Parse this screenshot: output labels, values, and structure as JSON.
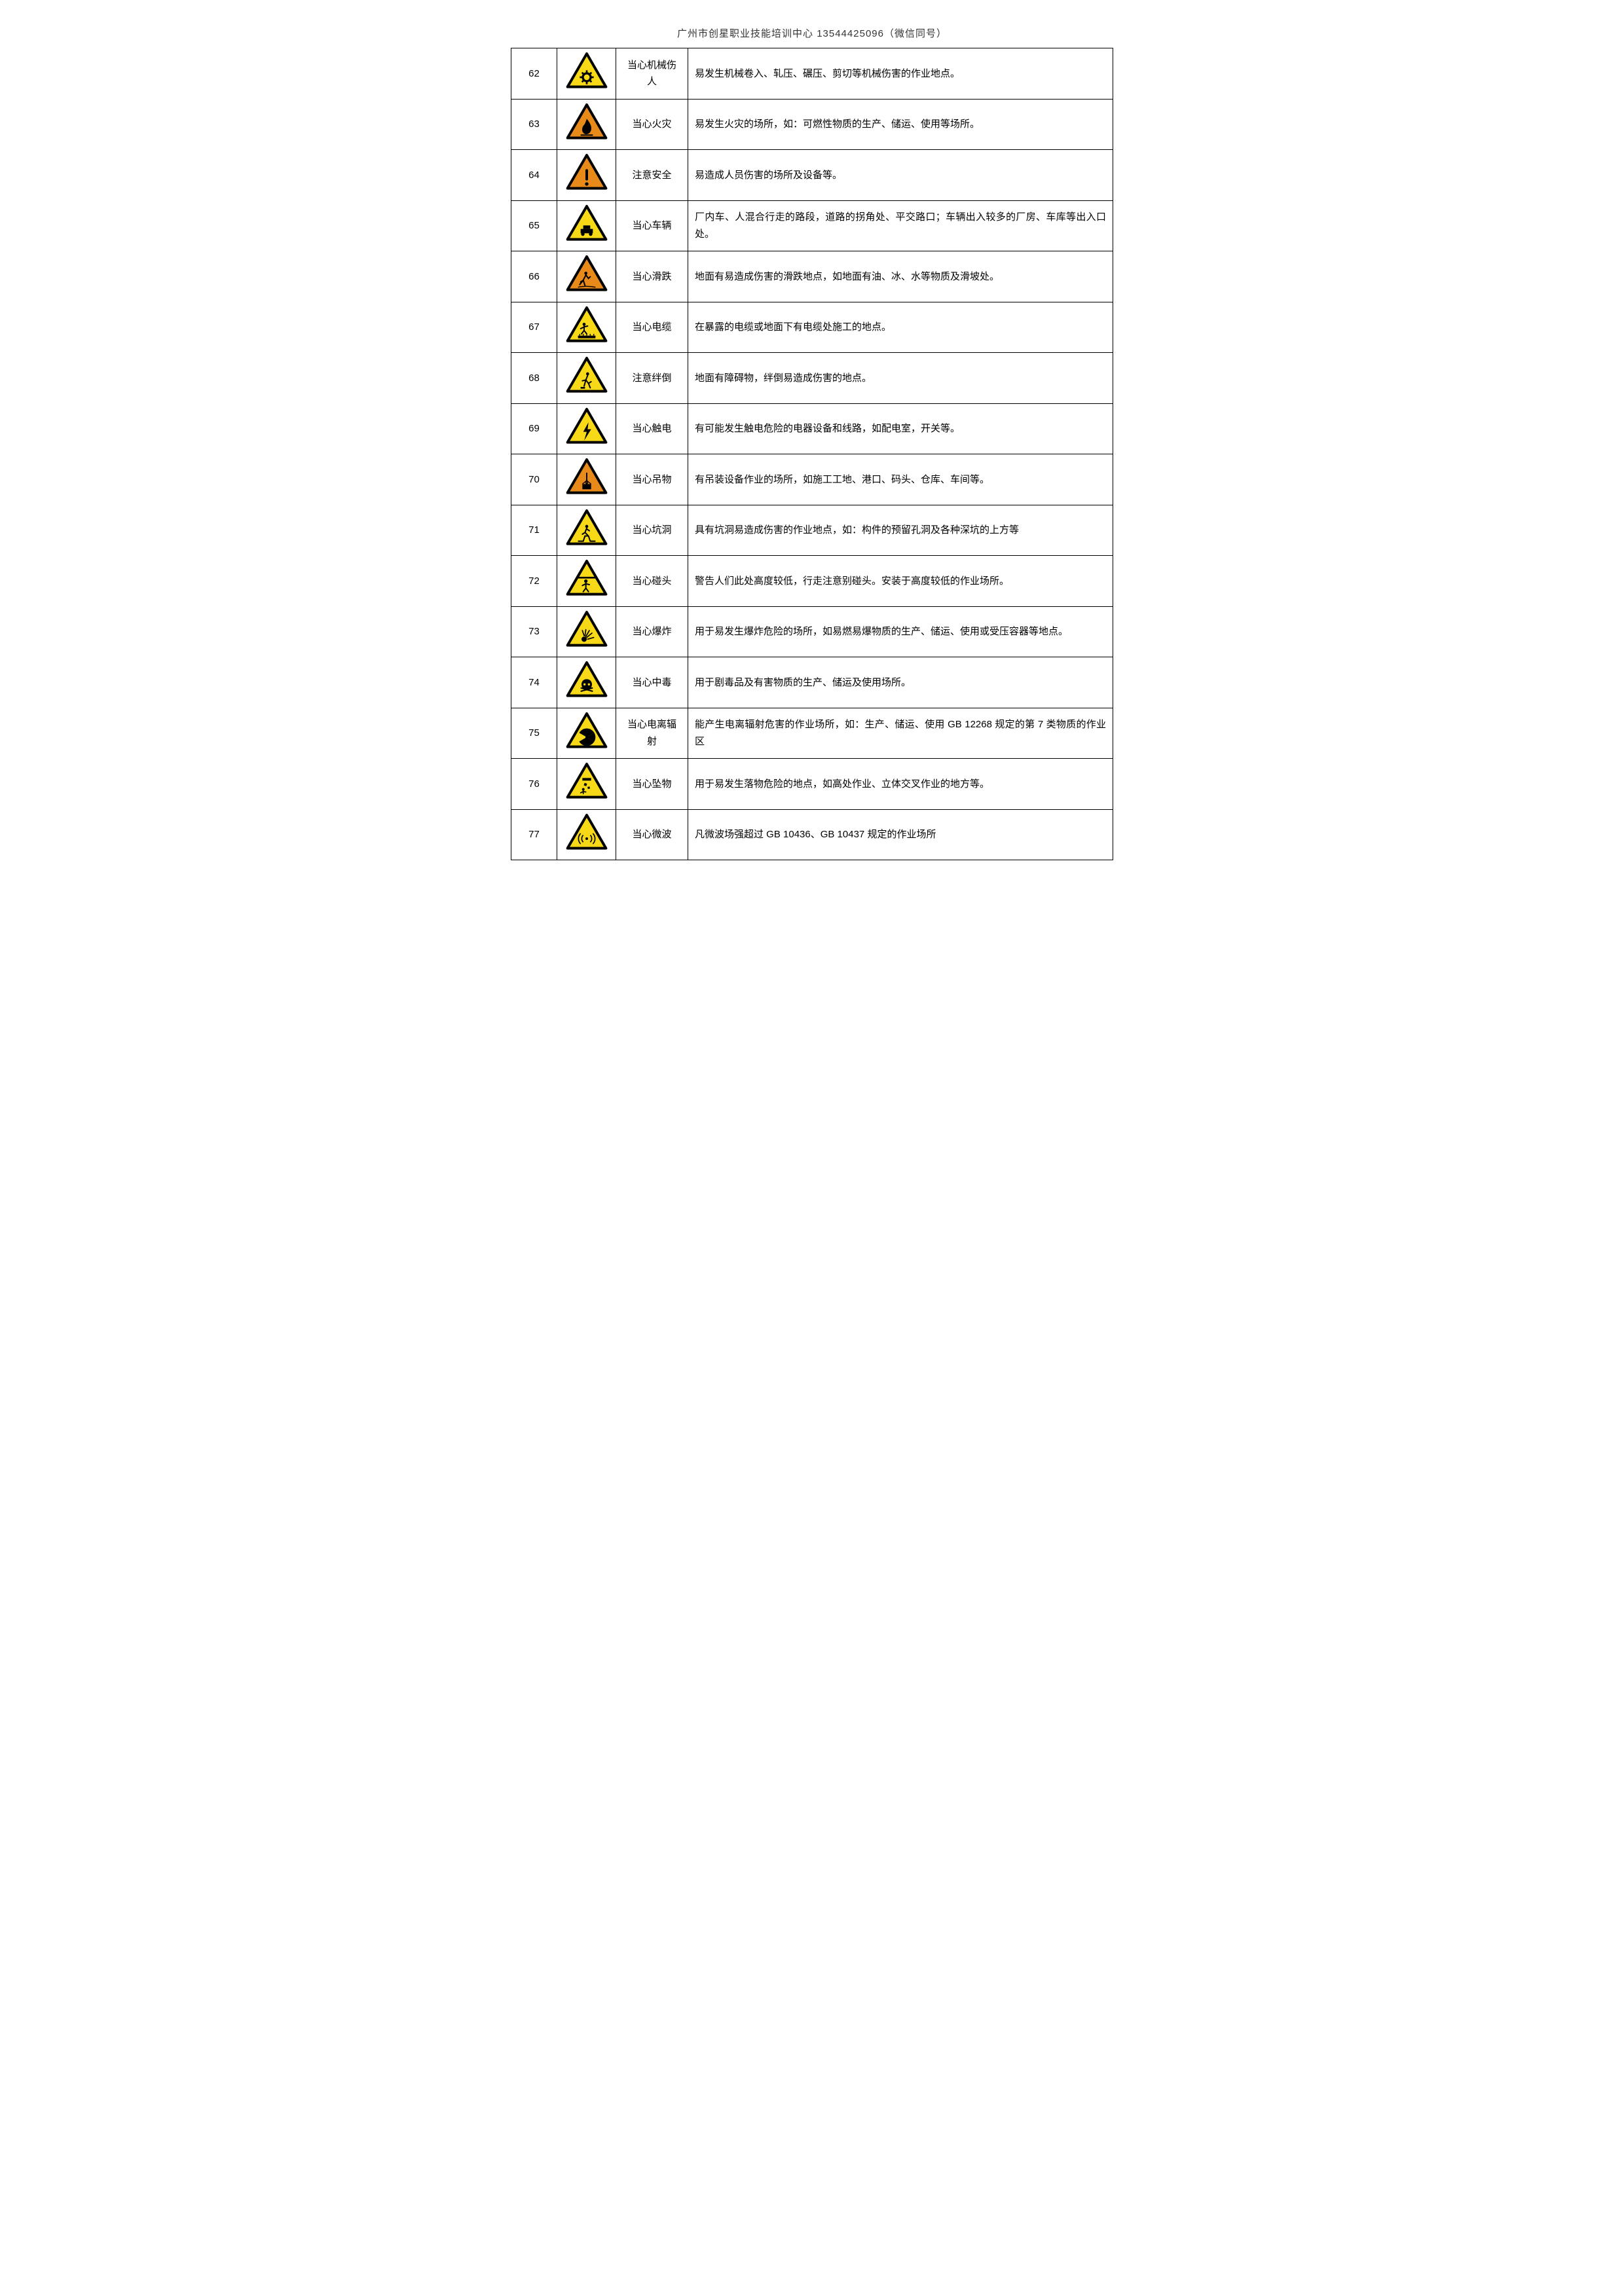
{
  "header": "广州市创星职业技能培训中心 13544425096（微信同号）",
  "colors": {
    "warn_yellow": "#f7d917",
    "warn_orange": "#e88a1a",
    "border_black": "#000000",
    "bg_white": "#ffffff",
    "text_black": "#000000"
  },
  "table": {
    "col_widths": {
      "num": 70,
      "icon": 90,
      "name": 110
    },
    "font_size": 15,
    "rows": [
      {
        "num": "62",
        "icon": "gear",
        "fill": "#f7d917",
        "name": "当心机械伤人",
        "desc": "易发生机械卷入、轧压、碾压、剪切等机械伤害的作业地点。"
      },
      {
        "num": "63",
        "icon": "flame",
        "fill": "#e88a1a",
        "name": "当心火灾",
        "desc": "易发生火灾的场所，如：可燃性物质的生产、储运、使用等场所。"
      },
      {
        "num": "64",
        "icon": "exclaim",
        "fill": "#e88a1a",
        "name": "注意安全",
        "desc": "易造成人员伤害的场所及设备等。"
      },
      {
        "num": "65",
        "icon": "vehicle",
        "fill": "#f7d917",
        "name": "当心车辆",
        "desc": "厂内车、人混合行走的路段，道路的拐角处、平交路口；车辆出入较多的厂房、车库等出入口处。"
      },
      {
        "num": "66",
        "icon": "slip",
        "fill": "#e88a1a",
        "name": "当心滑跌",
        "desc": "地面有易造成伤害的滑跌地点，如地面有油、冰、水等物质及滑坡处。"
      },
      {
        "num": "67",
        "icon": "cable",
        "fill": "#f7d917",
        "name": "当心电缆",
        "desc": "在暴露的电缆或地面下有电缆处施工的地点。"
      },
      {
        "num": "68",
        "icon": "trip",
        "fill": "#f7d917",
        "name": "注意绊倒",
        "desc": "地面有障碍物，绊倒易造成伤害的地点。"
      },
      {
        "num": "69",
        "icon": "bolt",
        "fill": "#f7d917",
        "name": "当心触电",
        "desc": "有可能发生触电危险的电器设备和线路，如配电室，开关等。"
      },
      {
        "num": "70",
        "icon": "crane",
        "fill": "#e88a1a",
        "name": "当心吊物",
        "desc": "有吊装设备作业的场所，如施工工地、港口、码头、仓库、车间等。"
      },
      {
        "num": "71",
        "icon": "pit",
        "fill": "#f7d917",
        "name": "当心坑洞",
        "desc": "具有坑洞易造成伤害的作业地点，如：构件的预留孔洞及各种深坑的上方等"
      },
      {
        "num": "72",
        "icon": "headbump",
        "fill": "#f7d917",
        "name": "当心碰头",
        "desc": "警告人们此处高度较低，行走注意别碰头。安装于高度较低的作业场所。"
      },
      {
        "num": "73",
        "icon": "explode",
        "fill": "#f7d917",
        "name": "当心爆炸",
        "desc": "用于易发生爆炸危险的场所，如易燃易爆物质的生产、储运、使用或受压容器等地点。"
      },
      {
        "num": "74",
        "icon": "skull",
        "fill": "#f7d917",
        "name": "当心中毒",
        "desc": "用于剧毒品及有害物质的生产、储运及使用场所。"
      },
      {
        "num": "75",
        "icon": "radiation",
        "fill": "#f7d917",
        "name": "当心电离辐射",
        "desc": "能产生电离辐射危害的作业场所，如：生产、储运、使用 GB 12268 规定的第 7 类物质的作业区"
      },
      {
        "num": "76",
        "icon": "falling",
        "fill": "#f7d917",
        "name": "当心坠物",
        "desc": "用于易发生落物危险的地点，如高处作业、立体交叉作业的地方等。"
      },
      {
        "num": "77",
        "icon": "microwave",
        "fill": "#f7d917",
        "name": "当心微波",
        "desc": "凡微波场强超过 GB 10436、GB 10437 规定的作业场所"
      }
    ]
  }
}
